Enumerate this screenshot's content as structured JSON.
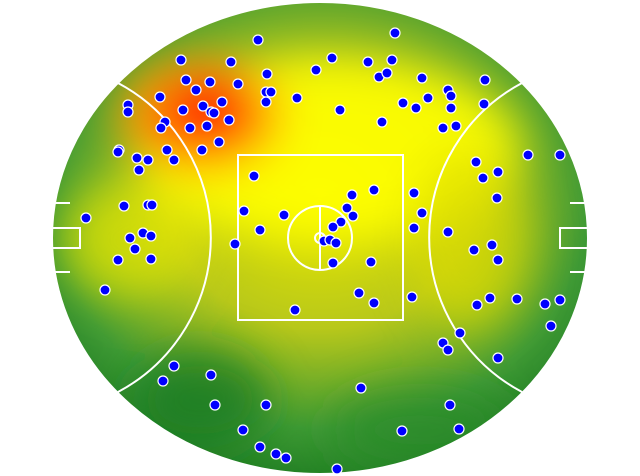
{
  "chart_data": {
    "type": "scatter",
    "color": "#0000ff",
    "xlim": [
      0,
      536
    ],
    "ylim": [
      0,
      470
    ],
    "x": [
      206,
      343,
      129,
      179,
      280,
      316,
      340,
      215,
      264,
      327,
      335,
      370,
      433,
      134,
      158,
      186,
      144,
      214,
      219,
      396,
      376,
      399,
      108,
      76,
      76,
      131,
      151,
      159,
      170,
      214,
      245,
      288,
      351,
      364,
      399,
      432,
      113,
      109,
      138,
      155,
      162,
      330,
      391,
      404,
      67,
      66,
      85,
      96,
      115,
      122,
      150,
      167,
      177,
      476,
      508,
      424,
      87,
      202,
      431,
      446,
      322,
      300,
      362,
      445,
      72,
      96,
      100,
      192,
      232,
      295,
      301,
      289,
      370,
      34,
      208,
      281,
      362,
      396,
      78,
      91,
      99,
      183,
      272,
      278,
      284,
      440,
      422,
      83,
      66,
      99,
      281,
      319,
      446,
      53,
      307,
      322,
      360,
      438,
      425,
      465,
      493,
      508,
      243,
      408,
      499,
      391,
      396,
      446,
      122,
      111,
      159,
      309,
      163,
      214,
      398,
      191,
      350,
      407,
      208,
      224,
      234,
      285
    ],
    "values": [
      434,
      441,
      414,
      412,
      416,
      412,
      414,
      400,
      404,
      397,
      401,
      396,
      394,
      394,
      392,
      390,
      384,
      382,
      382,
      384,
      376,
      378,
      377,
      369,
      362,
      364,
      368,
      362,
      372,
      372,
      376,
      364,
      371,
      366,
      366,
      370,
      352,
      346,
      346,
      348,
      361,
      352,
      346,
      348,
      324,
      322,
      316,
      314,
      324,
      314,
      324,
      332,
      354,
      319,
      319,
      312,
      304,
      298,
      296,
      302,
      284,
      279,
      281,
      276,
      268,
      269,
      269,
      263,
      259,
      266,
      258,
      252,
      261,
      256,
      244,
      247,
      246,
      242,
      236,
      241,
      238,
      230,
      233,
      234,
      231,
      229,
      224,
      225,
      214,
      215,
      211,
      212,
      214,
      184,
      181,
      171,
      177,
      176,
      169,
      175,
      170,
      174,
      164,
      141,
      148,
      131,
      124,
      116,
      108,
      93,
      99,
      86,
      69,
      69,
      69,
      44,
      43,
      45,
      27,
      20,
      16,
      5
    ]
  }
}
